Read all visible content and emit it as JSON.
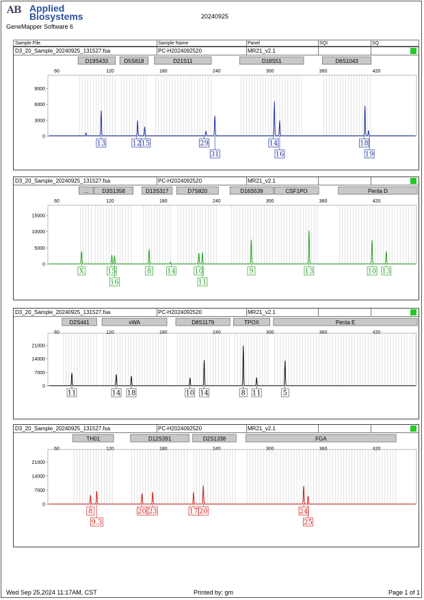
{
  "header": {
    "brand_line1": "Applied",
    "brand_line2": "Biosystems",
    "logo_mark": "AB",
    "software": "GeneMapper Software 6",
    "date": "20240925"
  },
  "columns": [
    "Sample File",
    "Sample Name",
    "Panel",
    "SQI",
    "SQ"
  ],
  "footer": {
    "printed_at": "Wed Sep 25,2024 11:17AM, CST",
    "printed_by": "Printed by: gm",
    "page": "Page 1 of 1"
  },
  "chart_data": [
    {
      "type": "line",
      "sample_file": "D3_20_Sample_20240925_131527.fsa",
      "sample_name": "PC-H2024092520",
      "panel": "MR21_v2.1",
      "color": "#1f2fa0",
      "x_ticks": [
        60,
        120,
        180,
        240,
        300,
        360,
        420
      ],
      "xlim": [
        50,
        465
      ],
      "y_ticks": [
        0,
        3000,
        6000,
        9000
      ],
      "ylim": [
        0,
        10500
      ],
      "loci": [
        {
          "name": "D19S433",
          "x0": 84,
          "x1": 126
        },
        {
          "name": "D5S818",
          "x0": 131,
          "x1": 163
        },
        {
          "name": "D21S11",
          "x0": 170,
          "x1": 234
        },
        {
          "name": "D18S51",
          "x0": 266,
          "x1": 338
        },
        {
          "name": "D6S1043",
          "x0": 359,
          "x1": 414
        }
      ],
      "peaks": [
        {
          "x": 93,
          "y": 550
        },
        {
          "x": 110,
          "y": 4800
        },
        {
          "x": 151,
          "y": 2900
        },
        {
          "x": 159,
          "y": 1700
        },
        {
          "x": 228,
          "y": 900
        },
        {
          "x": 238,
          "y": 3800
        },
        {
          "x": 305,
          "y": 6500
        },
        {
          "x": 311,
          "y": 2900
        },
        {
          "x": 407,
          "y": 5700
        },
        {
          "x": 411,
          "y": 1000
        }
      ],
      "alleles": [
        {
          "label": "13",
          "x": 110,
          "row": 1
        },
        {
          "label": "12",
          "x": 150,
          "row": 1
        },
        {
          "label": "15",
          "x": 160,
          "row": 1
        },
        {
          "label": "29",
          "x": 226,
          "row": 1
        },
        {
          "label": "31",
          "x": 238,
          "row": 2
        },
        {
          "label": "14",
          "x": 304,
          "row": 1
        },
        {
          "label": "16",
          "x": 311,
          "row": 2
        },
        {
          "label": "18",
          "x": 406,
          "row": 1
        },
        {
          "label": "19",
          "x": 412,
          "row": 2
        }
      ]
    },
    {
      "type": "line",
      "sample_file": "D3_20_Sample_20240925_131527.fsa",
      "sample_name": "PC-H2024092520",
      "panel": "MR21_v2.1",
      "color": "#22a022",
      "x_ticks": [
        60,
        120,
        180,
        240,
        300,
        360,
        420
      ],
      "xlim": [
        50,
        465
      ],
      "y_ticks": [
        0,
        5000,
        10000,
        15000
      ],
      "ylim": [
        0,
        16500
      ],
      "loci": [
        {
          "name": "...",
          "x0": 85,
          "x1": 101
        },
        {
          "name": "D3S1358",
          "x0": 102,
          "x1": 146
        },
        {
          "name": "D13S317",
          "x0": 156,
          "x1": 190
        },
        {
          "name": "D7S820",
          "x0": 195,
          "x1": 242
        },
        {
          "name": "D16S539",
          "x0": 255,
          "x1": 304
        },
        {
          "name": "CSF1PO",
          "x0": 305,
          "x1": 355
        },
        {
          "name": "Penta D",
          "x0": 377,
          "x1": 466
        }
      ],
      "peaks": [
        {
          "x": 88,
          "y": 3900
        },
        {
          "x": 122,
          "y": 2800
        },
        {
          "x": 125,
          "y": 2600
        },
        {
          "x": 164,
          "y": 4500
        },
        {
          "x": 188,
          "y": 600
        },
        {
          "x": 220,
          "y": 3300
        },
        {
          "x": 224,
          "y": 3600
        },
        {
          "x": 279,
          "y": 7500
        },
        {
          "x": 344,
          "y": 10300
        },
        {
          "x": 415,
          "y": 7300
        },
        {
          "x": 431,
          "y": 3900
        }
      ],
      "alleles": [
        {
          "label": "X",
          "x": 88,
          "row": 1
        },
        {
          "label": "15",
          "x": 122,
          "row": 1
        },
        {
          "label": "16",
          "x": 125,
          "row": 2
        },
        {
          "label": "8",
          "x": 164,
          "row": 1
        },
        {
          "label": "14",
          "x": 189,
          "row": 1
        },
        {
          "label": "10",
          "x": 220,
          "row": 1
        },
        {
          "label": "11",
          "x": 224,
          "row": 2
        },
        {
          "label": "9",
          "x": 279,
          "row": 1
        },
        {
          "label": "13",
          "x": 344,
          "row": 1
        },
        {
          "label": "10",
          "x": 415,
          "row": 1
        },
        {
          "label": "13",
          "x": 431,
          "row": 1
        }
      ]
    },
    {
      "type": "line",
      "sample_file": "D3_20_Sample_20240925_131527.fsa",
      "sample_name": "PC-H2024092520",
      "panel": "MR21_v2.1",
      "color": "#111111",
      "x_ticks": [
        60,
        120,
        180,
        240,
        300,
        360,
        420
      ],
      "xlim": [
        50,
        465
      ],
      "y_ticks": [
        0,
        7000,
        14000,
        21000
      ],
      "ylim": [
        0,
        24500
      ],
      "loci": [
        {
          "name": "D2S441",
          "x0": 66,
          "x1": 105
        },
        {
          "name": "vWA",
          "x0": 111,
          "x1": 184
        },
        {
          "name": "D8S1179",
          "x0": 194,
          "x1": 255
        },
        {
          "name": "TPOX",
          "x0": 259,
          "x1": 300
        },
        {
          "name": "Penta E",
          "x0": 304,
          "x1": 466
        }
      ],
      "peaks": [
        {
          "x": 77,
          "y": 6700
        },
        {
          "x": 127,
          "y": 6000
        },
        {
          "x": 144,
          "y": 5100
        },
        {
          "x": 210,
          "y": 4100
        },
        {
          "x": 226,
          "y": 13300
        },
        {
          "x": 270,
          "y": 20800
        },
        {
          "x": 285,
          "y": 4300
        },
        {
          "x": 317,
          "y": 13000
        }
      ],
      "alleles": [
        {
          "label": "11",
          "x": 77,
          "row": 1
        },
        {
          "label": "14",
          "x": 127,
          "row": 1
        },
        {
          "label": "18",
          "x": 144,
          "row": 1
        },
        {
          "label": "10",
          "x": 210,
          "row": 1
        },
        {
          "label": "14",
          "x": 226,
          "row": 1
        },
        {
          "label": "8",
          "x": 270,
          "row": 1
        },
        {
          "label": "11",
          "x": 285,
          "row": 1
        },
        {
          "label": "5",
          "x": 317,
          "row": 1
        }
      ]
    },
    {
      "type": "line",
      "sample_file": "D3_20_Sample_20240925_131527.fsa",
      "sample_name": "PC-H2024092520",
      "panel": "MR21_v2.1",
      "color": "#d01c1c",
      "x_ticks": [
        60,
        120,
        180,
        240,
        300,
        360,
        420
      ],
      "xlim": [
        50,
        465
      ],
      "y_ticks": [
        0,
        7000,
        14000,
        21000
      ],
      "ylim": [
        0,
        24500
      ],
      "loci": [
        {
          "name": "TH01",
          "x0": 78,
          "x1": 124
        },
        {
          "name": "D12S391",
          "x0": 143,
          "x1": 209
        },
        {
          "name": "D2S1338",
          "x0": 213,
          "x1": 262
        },
        {
          "name": "FGA",
          "x0": 273,
          "x1": 442
        }
      ],
      "peaks": [
        {
          "x": 98,
          "y": 4500
        },
        {
          "x": 105,
          "y": 6400
        },
        {
          "x": 156,
          "y": 5300
        },
        {
          "x": 168,
          "y": 6000
        },
        {
          "x": 214,
          "y": 5900
        },
        {
          "x": 225,
          "y": 9200
        },
        {
          "x": 338,
          "y": 9100
        },
        {
          "x": 343,
          "y": 4100
        }
      ],
      "alleles": [
        {
          "label": "8",
          "x": 98,
          "row": 1
        },
        {
          "label": "9.3",
          "x": 105,
          "row": 2
        },
        {
          "label": "20",
          "x": 156,
          "row": 1
        },
        {
          "label": "23",
          "x": 168,
          "row": 1
        },
        {
          "label": "17",
          "x": 214,
          "row": 1
        },
        {
          "label": "20",
          "x": 225,
          "row": 1
        },
        {
          "label": "24",
          "x": 338,
          "row": 1
        },
        {
          "label": "25",
          "x": 343,
          "row": 2
        }
      ]
    }
  ]
}
